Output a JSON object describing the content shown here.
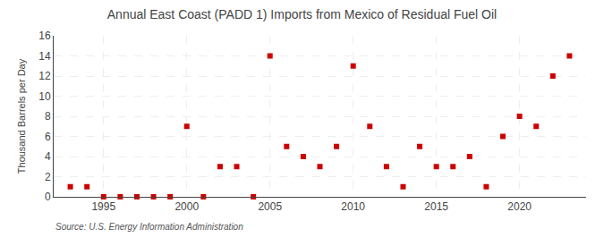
{
  "chart_data": {
    "type": "scatter",
    "title": "Annual East Coast (PADD 1) Imports from Mexico of Residual Fuel Oil",
    "ylabel": "Thousand Barrels per Day",
    "annotations": [
      "Source: U.S. Energy Information Administration"
    ],
    "x": [
      1993,
      1994,
      1995,
      1996,
      1997,
      1998,
      1999,
      2000,
      2001,
      2002,
      2003,
      2004,
      2005,
      2006,
      2007,
      2008,
      2009,
      2010,
      2011,
      2012,
      2013,
      2014,
      2015,
      2016,
      2017,
      2018,
      2019,
      2020,
      2021,
      2022,
      2023
    ],
    "values": [
      1,
      1,
      0,
      0,
      0,
      0,
      0,
      7,
      0,
      3,
      3,
      0,
      14,
      5,
      4,
      3,
      5,
      13,
      7,
      3,
      1,
      5,
      3,
      3,
      4,
      1,
      6,
      8,
      7,
      12,
      14
    ],
    "color": "#cc0000",
    "marker": "square",
    "xlim": [
      1992,
      2024
    ],
    "xticks": [
      1995,
      2000,
      2005,
      2010,
      2015,
      2020
    ],
    "ylim": [
      0,
      16
    ],
    "yticks": [
      0,
      2,
      4,
      6,
      8,
      10,
      12,
      14,
      16
    ],
    "grid": true
  }
}
